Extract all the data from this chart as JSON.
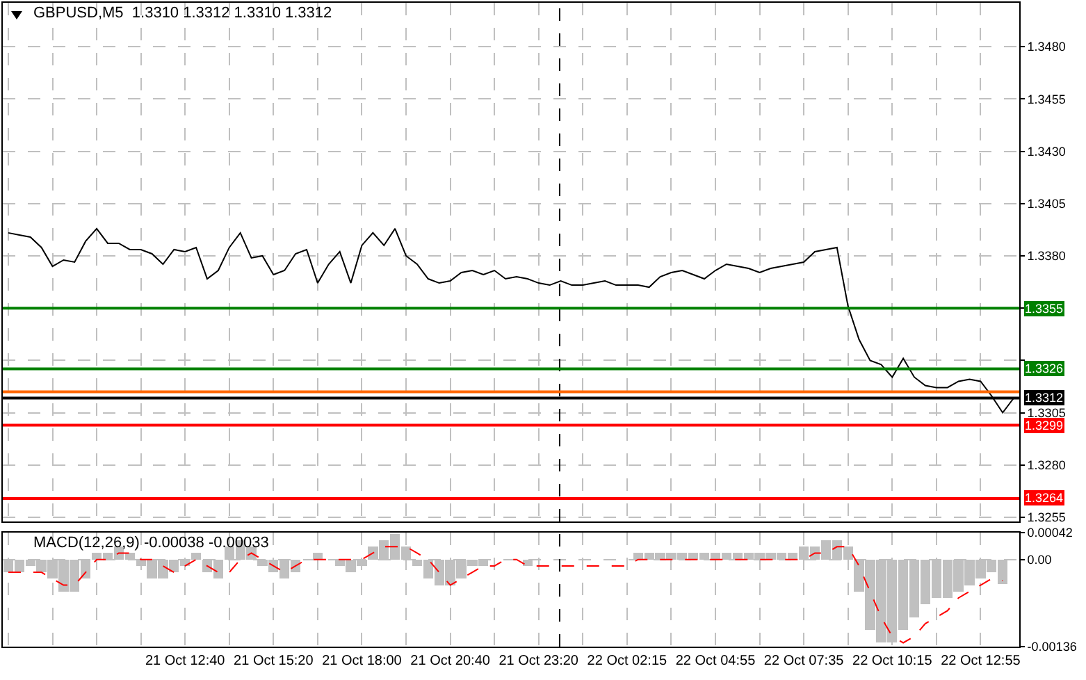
{
  "chart_data": [
    {
      "type": "line",
      "title": "GBPUSD,M5  1.3310 1.3312 1.3310 1.3312",
      "color": "#000000",
      "categories": [
        null,
        null,
        null,
        null,
        null,
        null,
        null,
        null,
        null,
        null,
        null,
        null,
        null,
        null,
        null,
        null,
        null,
        null,
        null,
        null,
        null,
        null,
        null,
        null,
        null,
        null,
        null,
        null,
        null,
        null,
        null,
        null,
        null,
        null,
        null,
        null,
        null,
        null,
        null,
        null,
        null,
        null,
        null,
        null,
        null,
        null,
        null,
        null,
        null,
        null,
        null,
        null,
        null,
        null,
        null,
        null,
        null,
        null,
        null,
        null,
        null,
        null,
        null,
        null,
        null,
        null,
        null,
        null,
        null,
        null,
        null,
        null,
        null,
        null,
        null,
        null,
        null,
        null,
        null,
        null,
        null,
        null,
        null,
        null,
        null,
        null,
        null,
        null,
        null,
        null,
        null,
        null
      ],
      "values": [
        1.3391,
        1.339,
        1.3389,
        1.3384,
        1.3375,
        1.3378,
        1.3377,
        1.3387,
        1.3393,
        1.3386,
        1.3386,
        1.3383,
        1.3383,
        1.3381,
        1.3376,
        1.3383,
        1.3382,
        1.3384,
        1.3369,
        1.3373,
        1.3384,
        1.3391,
        1.3379,
        1.338,
        1.3371,
        1.3373,
        1.3381,
        1.3383,
        1.3367,
        1.3376,
        1.3382,
        1.3367,
        1.3385,
        1.3391,
        1.3385,
        1.3393,
        1.338,
        1.3376,
        1.3369,
        1.3367,
        1.3368,
        1.3372,
        1.3373,
        1.3371,
        1.3373,
        1.3369,
        1.337,
        1.3369,
        1.3367,
        1.3366,
        1.3368,
        1.3366,
        1.3366,
        1.3367,
        1.3368,
        1.3366,
        1.3366,
        1.3366,
        1.3365,
        1.337,
        1.3372,
        1.3373,
        1.3371,
        1.3369,
        1.3373,
        1.3376,
        1.3375,
        1.3374,
        1.3372,
        1.3374,
        1.3375,
        1.3376,
        1.3377,
        1.3382,
        1.3383,
        1.3384,
        1.3356,
        1.334,
        1.333,
        1.3328,
        1.3322,
        1.3331,
        1.3322,
        1.3318,
        1.3317,
        1.3317,
        1.332,
        1.3321,
        1.332,
        1.3313,
        1.3305,
        1.3312
      ],
      "ylim": [
        1.3253,
        1.3501
      ],
      "yticks": [
        {
          "value": 1.348,
          "label": "1.3480"
        },
        1.3455,
        {
          "value": 1.343,
          "label": "1.3430"
        },
        1.3405,
        {
          "value": 1.338,
          "label": "1.3380"
        },
        {
          "value": 1.3355,
          "label": null
        },
        {
          "value": 1.333,
          "label": null
        },
        1.3305,
        {
          "value": 1.328,
          "label": "1.3280"
        },
        1.3255
      ],
      "tick_labels": "y",
      "grid": true,
      "ref_lines": [
        {
          "axis": "y",
          "value": 1.3355,
          "label": "1.3355",
          "color": "#008000"
        },
        {
          "axis": "y",
          "value": 1.3326,
          "label": "1.3326",
          "color": "#008000"
        },
        {
          "axis": "y",
          "value": 1.3315,
          "color": "#ff6600"
        },
        {
          "axis": "y",
          "value": 1.3312,
          "label": "1.3312",
          "color": "#000000"
        },
        {
          "axis": "y",
          "value": 1.3299,
          "label": "1.3299",
          "color": "#ff0000"
        },
        {
          "axis": "y",
          "value": 1.3264,
          "label": "1.3264",
          "color": "#ff0000"
        }
      ]
    },
    {
      "type": "bar",
      "title": "MACD(12,26,9) -0.00038 -0.00033",
      "categories": [
        null,
        null,
        null,
        null,
        null,
        null,
        null,
        null,
        null,
        null,
        null,
        null,
        null,
        null,
        null,
        null,
        "21 Oct 12:40",
        null,
        null,
        null,
        null,
        null,
        null,
        null,
        "21 Oct 15:20",
        null,
        null,
        null,
        null,
        null,
        null,
        null,
        "21 Oct 18:00",
        null,
        null,
        null,
        null,
        null,
        null,
        null,
        "21 Oct 20:40",
        null,
        null,
        null,
        null,
        null,
        null,
        null,
        "21 Oct 23:20",
        null,
        null,
        null,
        null,
        null,
        null,
        null,
        "22 Oct 02:15",
        null,
        null,
        null,
        null,
        null,
        null,
        null,
        "22 Oct 04:55",
        null,
        null,
        null,
        null,
        null,
        null,
        null,
        "22 Oct 07:35",
        null,
        null,
        null,
        null,
        null,
        null,
        null,
        "22 Oct 10:15",
        null,
        null,
        null,
        null,
        null,
        null,
        null,
        "22 Oct 12:55",
        null,
        null,
        null
      ],
      "series": [
        {
          "color": "#c0c0c0",
          "values": [
            -0.0002,
            -0.0002,
            -0.0001,
            -0.0002,
            -0.0003,
            -0.0005,
            -0.0005,
            -0.0003,
            0.0001,
            0.0001,
            0.0002,
            0.0001,
            -0.0001,
            -0.0003,
            -0.0003,
            -0.0002,
            -0.0001,
            0.0001,
            -0.0002,
            -0.0003,
            0.0002,
            0.0003,
            0.0002,
            -0.0001,
            -0.0002,
            -0.0003,
            -0.0002,
            0,
            0.0001,
            0,
            -0.0001,
            -0.0002,
            -0.0001,
            0.0002,
            0.0003,
            0.0004,
            0.0002,
            -0.0001,
            -0.0003,
            -0.0004,
            -0.0004,
            -0.0003,
            -0.0001,
            -0.0001,
            0,
            0,
            0,
            -0.0001,
            0,
            0,
            0,
            0,
            0,
            0,
            0,
            0,
            0,
            0.0001,
            0.0001,
            0.0001,
            0.0001,
            0.0001,
            0.0001,
            0.0001,
            0.0001,
            0.0001,
            0.0001,
            0.0001,
            0.0001,
            0.0001,
            0.0001,
            0.0001,
            0.0002,
            0.0002,
            0.0003,
            0.0003,
            0.0002,
            -0.0005,
            -0.0011,
            -0.0013,
            -0.0013,
            -0.0011,
            -0.0009,
            -0.0007,
            -0.0006,
            -0.0006,
            -0.0005,
            -0.0004,
            -0.0003,
            -0.0002,
            -0.00038,
            null
          ]
        },
        {
          "type": "line",
          "color": "#ff0000",
          "line_style": "dashed",
          "values": [
            -0.0002,
            -0.0002,
            -0.0002,
            -0.0002,
            -0.0003,
            -0.0004,
            -0.0004,
            -0.0002,
            0,
            0,
            0.0001,
            0.0001,
            0,
            0,
            -0.0001,
            -0.0002,
            -0.0001,
            0,
            -0.0001,
            -0.0002,
            -0.0002,
            0,
            0.0001,
            0,
            -0.0001,
            -0.0002,
            -0.0001,
            0,
            0,
            0,
            0,
            0,
            0,
            0.0001,
            0.0002,
            0.0002,
            0.0002,
            0.0001,
            0,
            -0.0002,
            -0.0004,
            -0.0003,
            -0.0002,
            -0.0001,
            -0.0001,
            0,
            0,
            -0.0001,
            -0.0001,
            -0.0001,
            -0.0001,
            -0.0001,
            -0.0001,
            -0.0001,
            -0.0001,
            -0.0001,
            -0.0001,
            0,
            0,
            0,
            0,
            0,
            0,
            0,
            0,
            0,
            0,
            0,
            0,
            0,
            0,
            0,
            0,
            0.0001,
            0.0001,
            0.0002,
            0.0002,
            -0.0001,
            -0.0005,
            -0.0009,
            -0.0012,
            -0.0013,
            -0.0012,
            -0.001,
            -0.0009,
            -0.0008,
            -0.0006,
            -0.0005,
            -0.0004,
            -0.0003,
            -0.00033,
            null
          ]
        }
      ],
      "ylim": [
        -0.00136,
        0.00042
      ],
      "yticks": [
        0.00042,
        {
          "value": 0,
          "label": "0.00"
        },
        -0.00136
      ],
      "grid": true
    }
  ]
}
